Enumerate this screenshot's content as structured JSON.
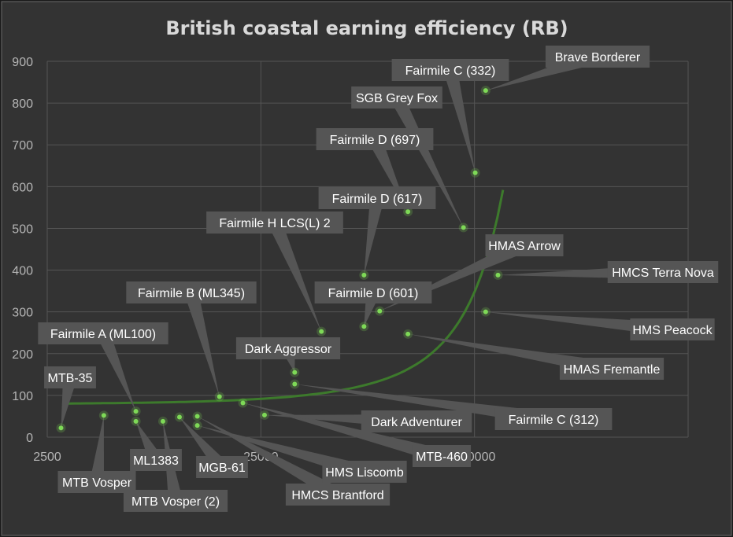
{
  "chart_data": {
    "type": "scatter",
    "title": "British coastal earning efficiency (RB)",
    "xlabel": "",
    "ylabel": "",
    "x_scale": "log",
    "xlim": [
      2500,
      2500000
    ],
    "ylim": [
      0,
      900
    ],
    "x_ticks": [
      2500,
      25000,
      250000
    ],
    "x_tick_labels": [
      "2500",
      "25000",
      "250000"
    ],
    "y_ticks": [
      0,
      100,
      200,
      300,
      400,
      500,
      600,
      700,
      800,
      900
    ],
    "y_tick_labels": [
      "0",
      "100",
      "200",
      "300",
      "400",
      "500",
      "600",
      "700",
      "800",
      "900"
    ],
    "grid": "vertical and horizontal",
    "colors": {
      "background": "#333333",
      "outer": "#1a1a1a",
      "point": "#7ed957",
      "trendline": "#3d7a2c",
      "label_box": "#555555",
      "grid": "#555555"
    },
    "trendline": {
      "type": "exponential",
      "a": 79.1,
      "b": 5.92e-06,
      "x_from": 3000,
      "x_to": 340000
    },
    "points": [
      {
        "name": "MTB-35",
        "x": 2900,
        "y": 22
      },
      {
        "name": "MTB Vosper",
        "x": 4600,
        "y": 52
      },
      {
        "name": "Fairmile A (ML100)",
        "x": 6500,
        "y": 62
      },
      {
        "name": "ML1383",
        "x": 6500,
        "y": 38
      },
      {
        "name": "MTB Vosper (2)",
        "x": 8700,
        "y": 38
      },
      {
        "name": "MGB-61",
        "x": 10400,
        "y": 48
      },
      {
        "name": "HMCS Brantford",
        "x": 12600,
        "y": 50
      },
      {
        "name": "HMS Liscomb",
        "x": 12600,
        "y": 28
      },
      {
        "name": "Fairmile B (ML345)",
        "x": 16000,
        "y": 97
      },
      {
        "name": "MTB-460",
        "x": 20600,
        "y": 82
      },
      {
        "name": "Dark Adventurer",
        "x": 26000,
        "y": 53
      },
      {
        "name": "Dark Aggressor",
        "x": 36000,
        "y": 155
      },
      {
        "name": "Fairmile C (312)",
        "x": 36000,
        "y": 127
      },
      {
        "name": "Fairmile H LCS(L) 2",
        "x": 48000,
        "y": 253
      },
      {
        "name": "Fairmile D (601)",
        "x": 76000,
        "y": 265
      },
      {
        "name": "Fairmile D (617)",
        "x": 76000,
        "y": 388
      },
      {
        "name": "HMAS Arrow",
        "x": 90000,
        "y": 302
      },
      {
        "name": "Fairmile D (697)",
        "x": 122000,
        "y": 540
      },
      {
        "name": "HMAS Fremantle",
        "x": 122000,
        "y": 247
      },
      {
        "name": "SGB Grey Fox",
        "x": 222000,
        "y": 502
      },
      {
        "name": "Fairmile C (332)",
        "x": 252000,
        "y": 633
      },
      {
        "name": "Brave Borderer",
        "x": 282000,
        "y": 830
      },
      {
        "name": "HMS Peacock",
        "x": 282000,
        "y": 300
      },
      {
        "name": "HMCS Terra Nova",
        "x": 322000,
        "y": 388
      }
    ]
  }
}
